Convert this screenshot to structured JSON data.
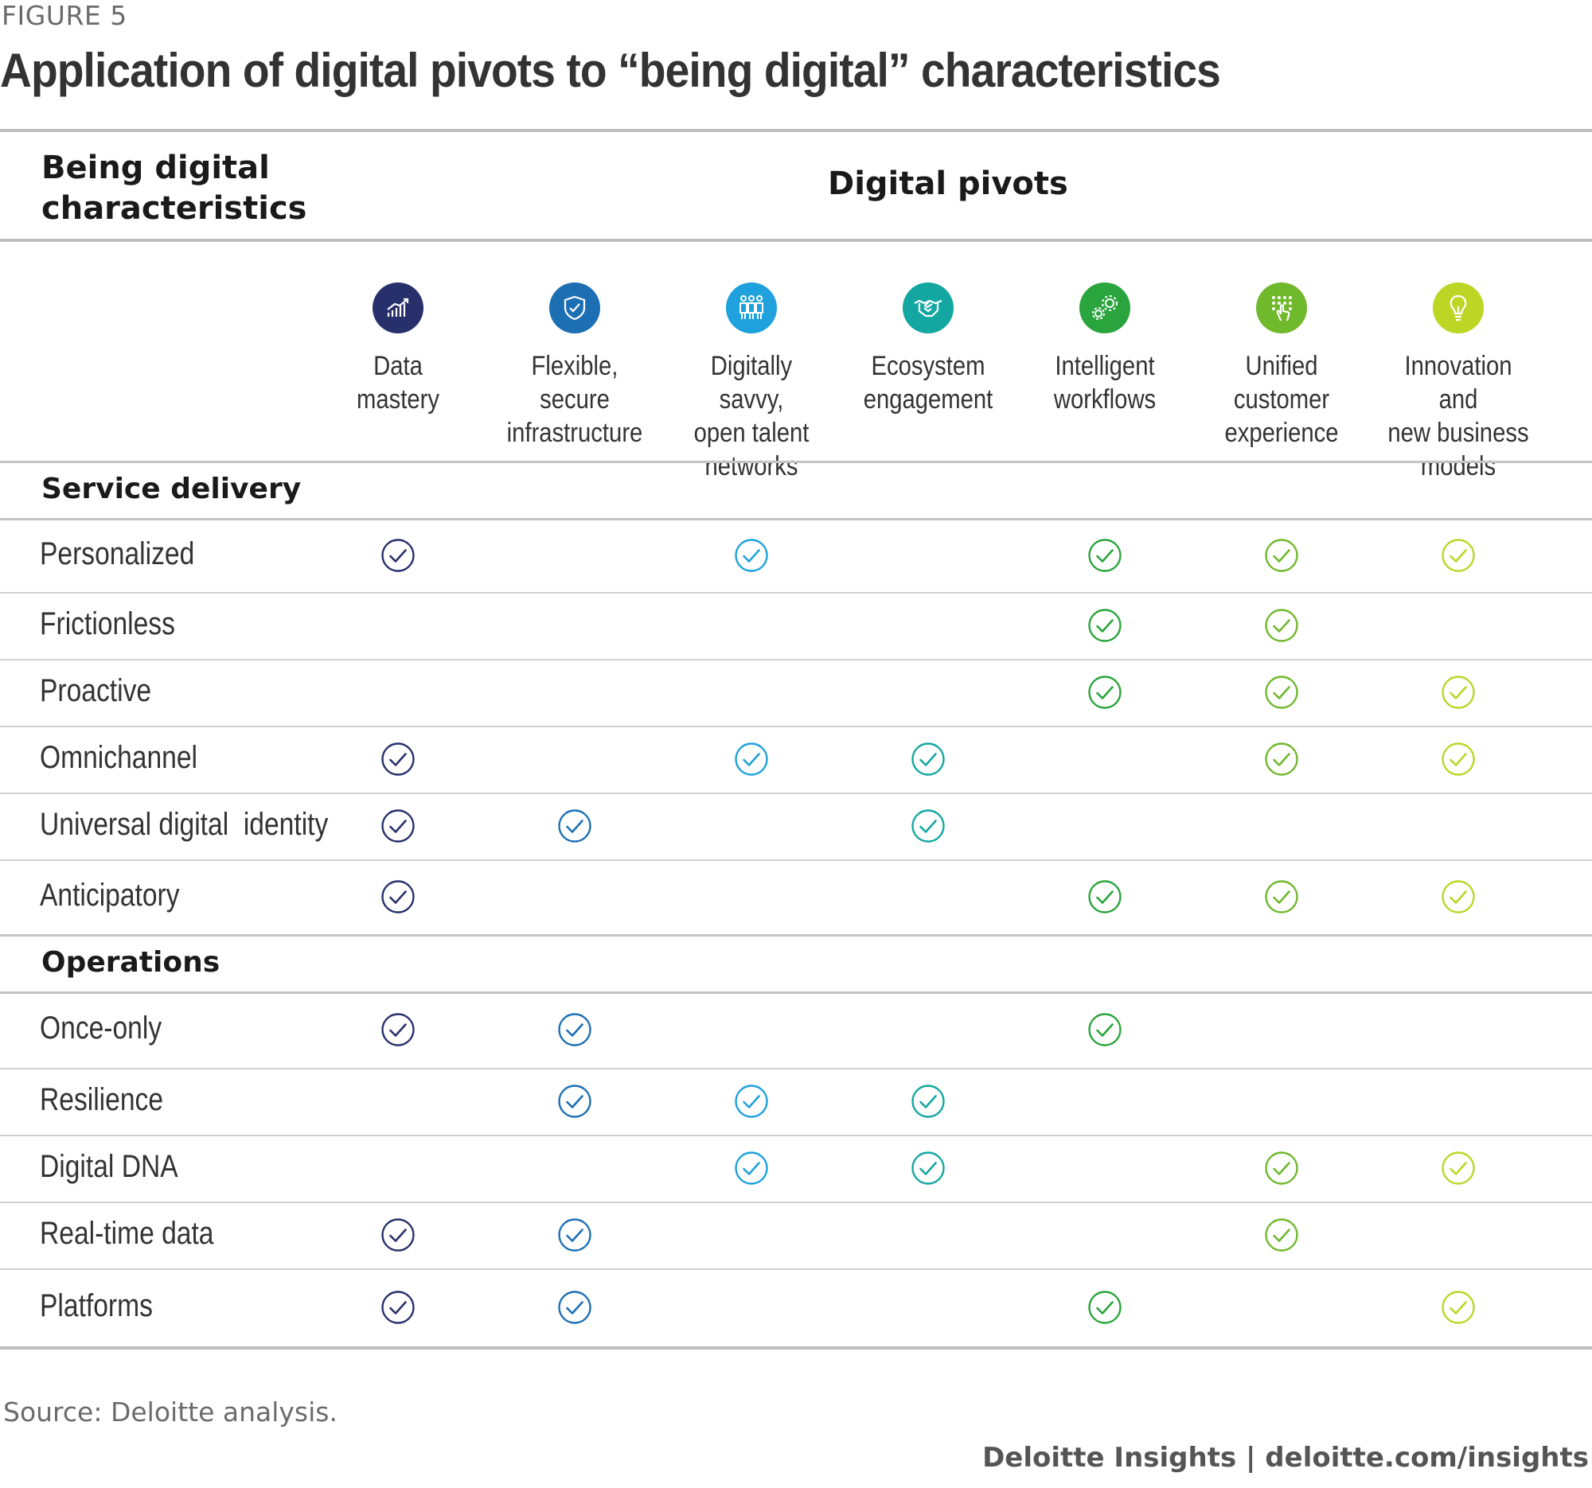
{
  "figure_label": "FIGURE 5",
  "title": "Application of digital pivots to “being digital” characteristics",
  "header": {
    "left_line1": "Being digital",
    "left_line2": "characteristics",
    "center": "Digital pivots"
  },
  "columns": [
    {
      "line1": "Data",
      "line2": "mastery",
      "line3": "",
      "icon": "chart-icon",
      "color": "#27306b"
    },
    {
      "line1": "Flexible, secure",
      "line2": "infrastructure",
      "line3": "",
      "icon": "shield-icon",
      "color": "#1d6fb4"
    },
    {
      "line1": "Digitally savvy,",
      "line2": "open talent",
      "line3": "networks",
      "icon": "people-icon",
      "color": "#1ea1dc"
    },
    {
      "line1": "Ecosystem",
      "line2": "engagement",
      "line3": "",
      "icon": "handshake-icon",
      "color": "#14a7a2"
    },
    {
      "line1": "Intelligent",
      "line2": "workflows",
      "line3": "",
      "icon": "gears-icon",
      "color": "#2aa43c"
    },
    {
      "line1": "Unified",
      "line2": "customer",
      "line3": "experience",
      "icon": "touch-icon",
      "color": "#70b82c"
    },
    {
      "line1": "Innovation and",
      "line2": "new business",
      "line3": "models",
      "icon": "lightbulb-icon",
      "color": "#bcd626"
    }
  ],
  "sections": [
    {
      "name": "Service delivery",
      "rows": [
        {
          "label": "Personalized",
          "checks": [
            true,
            false,
            true,
            false,
            true,
            true,
            true
          ]
        },
        {
          "label": "Frictionless",
          "checks": [
            false,
            false,
            false,
            false,
            true,
            true,
            false
          ]
        },
        {
          "label": "Proactive",
          "checks": [
            false,
            false,
            false,
            false,
            true,
            true,
            true
          ]
        },
        {
          "label": "Omnichannel",
          "checks": [
            true,
            false,
            true,
            true,
            false,
            true,
            true
          ]
        },
        {
          "label": "Universal digital  identity",
          "checks": [
            true,
            true,
            false,
            true,
            false,
            false,
            false
          ]
        },
        {
          "label": "Anticipatory",
          "checks": [
            true,
            false,
            false,
            false,
            true,
            true,
            true
          ]
        }
      ]
    },
    {
      "name": "Operations",
      "rows": [
        {
          "label": "Once-only",
          "checks": [
            true,
            true,
            false,
            false,
            true,
            false,
            false
          ]
        },
        {
          "label": "Resilience",
          "checks": [
            false,
            true,
            true,
            true,
            false,
            false,
            false
          ]
        },
        {
          "label": "Digital DNA",
          "checks": [
            false,
            false,
            true,
            true,
            false,
            true,
            true
          ]
        },
        {
          "label": "Real-time data",
          "checks": [
            true,
            true,
            false,
            false,
            false,
            true,
            false
          ]
        },
        {
          "label": "Platforms",
          "checks": [
            true,
            true,
            false,
            false,
            true,
            false,
            true
          ]
        }
      ]
    }
  ],
  "source": "Source: Deloitte analysis.",
  "footer": "Deloitte Insights | deloitte.com/insights"
}
